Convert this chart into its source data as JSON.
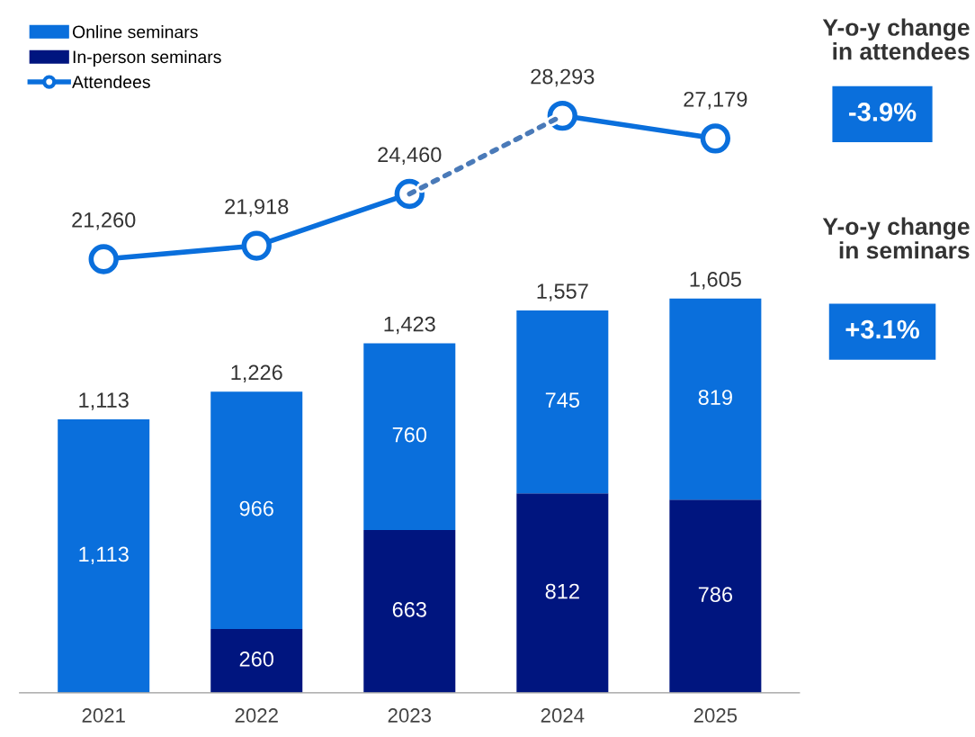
{
  "chart_data": [
    {
      "type": "bar",
      "stacked": true,
      "legend": "top left",
      "grid": false,
      "categories": [
        "2021",
        "2022",
        "2023",
        "2024",
        "2025"
      ],
      "series": [
        {
          "name": "In-person seminars",
          "color": "#00157f",
          "values": [
            null,
            260,
            663,
            812,
            786
          ],
          "value_labels": [
            null,
            "260",
            "663",
            "812",
            "786"
          ]
        },
        {
          "name": "Online seminars",
          "color": "#0a6fdc",
          "values": [
            1113,
            966,
            760,
            745,
            819
          ],
          "value_labels": [
            "1,113",
            "966",
            "760",
            "745",
            "819"
          ]
        }
      ],
      "totals": [
        "1,113",
        "1,226",
        "1,423",
        "1,557",
        "1,605"
      ],
      "annotations": [
        "Y-o-y change\nin attendees",
        "-3.9%",
        "Y-o-y change\nin seminars",
        "+3.1%"
      ]
    },
    {
      "type": "line",
      "legend": "top left",
      "grid": false,
      "tick_labels": false,
      "categories": [
        "2021",
        "2022",
        "2023",
        "2024",
        "2025"
      ],
      "series": [
        {
          "name": "Attendees",
          "color": "#0a6fdc",
          "marker": "circle",
          "line_style": "solid",
          "values": [
            21260,
            21918,
            24460,
            28293,
            27179
          ],
          "value_labels": [
            "21,260",
            "21,918",
            "24,460",
            "28,293",
            "27,179"
          ]
        },
        {
          "color": "#4a7ab8",
          "marker": "none",
          "line_style": "dotted",
          "values": [
            null,
            null,
            24460,
            28293,
            null
          ]
        }
      ]
    }
  ]
}
